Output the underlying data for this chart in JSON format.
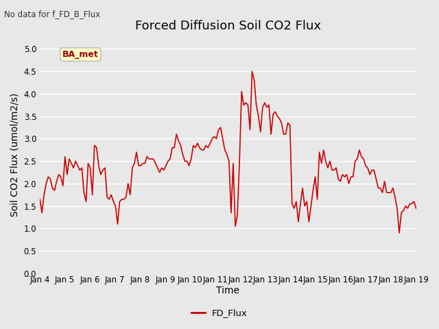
{
  "title": "Forced Diffusion Soil CO2 Flux",
  "top_left_text": "No data for f_FD_B_Flux",
  "xlabel": "Time",
  "ylabel": "Soil CO2 Flux (umol/m2/s)",
  "ylim": [
    0.0,
    5.3
  ],
  "yticks": [
    0.0,
    0.5,
    1.0,
    1.5,
    2.0,
    2.5,
    3.0,
    3.5,
    4.0,
    4.5,
    5.0
  ],
  "xtick_labels": [
    "Jan 4",
    "Jan 5",
    "Jan 6",
    "Jan 7",
    "Jan 8",
    "Jan 9",
    "Jan 10",
    "Jan 11",
    "Jan 12",
    "Jan 13",
    "Jan 14",
    "Jan 15",
    "Jan 16",
    "Jan 17",
    "Jan 18",
    "Jan 19"
  ],
  "line_color": "#cc0000",
  "legend_label": "FD_Flux",
  "legend_line_color": "#cc0000",
  "ba_met_text": "BA_met",
  "ba_met_bg": "#ffffcc",
  "ba_met_border": "#aaaaaa",
  "ba_met_text_color": "#990000",
  "bg_color": "#e8e8e8",
  "plot_bg_color": "#e8e8e8",
  "grid_color": "white",
  "title_fontsize": 13,
  "axis_label_fontsize": 10,
  "tick_fontsize": 8.5,
  "line_width": 1.2,
  "y_values": [
    1.65,
    1.35,
    1.75,
    2.0,
    2.15,
    2.1,
    1.9,
    1.85,
    2.05,
    2.2,
    2.15,
    1.95,
    2.6,
    2.2,
    2.55,
    2.45,
    2.35,
    2.5,
    2.4,
    2.3,
    2.35,
    1.8,
    1.6,
    2.45,
    2.35,
    1.75,
    2.85,
    2.8,
    2.4,
    2.2,
    2.3,
    2.35,
    1.7,
    1.65,
    1.75,
    1.6,
    1.5,
    1.1,
    1.6,
    1.65,
    1.65,
    1.7,
    2.0,
    1.75,
    2.35,
    2.45,
    2.7,
    2.4,
    2.4,
    2.45,
    2.45,
    2.6,
    2.55,
    2.55,
    2.55,
    2.45,
    2.35,
    2.25,
    2.35,
    2.3,
    2.4,
    2.5,
    2.55,
    2.8,
    2.8,
    3.1,
    2.95,
    2.85,
    2.65,
    2.5,
    2.5,
    2.4,
    2.55,
    2.85,
    2.8,
    2.9,
    2.8,
    2.75,
    2.75,
    2.85,
    2.8,
    2.9,
    3.0,
    3.05,
    3.0,
    3.2,
    3.25,
    3.0,
    2.75,
    2.65,
    2.5,
    1.35,
    2.45,
    1.05,
    1.3,
    2.5,
    4.05,
    3.75,
    3.8,
    3.75,
    3.2,
    4.5,
    4.3,
    3.75,
    3.5,
    3.15,
    3.7,
    3.8,
    3.7,
    3.75,
    3.1,
    3.55,
    3.6,
    3.5,
    3.45,
    3.35,
    3.1,
    3.1,
    3.35,
    3.3,
    1.55,
    1.45,
    1.6,
    1.15,
    1.55,
    1.9,
    1.5,
    1.6,
    1.15,
    1.5,
    1.85,
    2.15,
    1.65,
    2.7,
    2.45,
    2.75,
    2.5,
    2.35,
    2.5,
    2.3,
    2.3,
    2.35,
    2.1,
    2.05,
    2.2,
    2.15,
    2.2,
    2.0,
    2.15,
    2.15,
    2.5,
    2.55,
    2.75,
    2.6,
    2.55,
    2.4,
    2.35,
    2.2,
    2.3,
    2.3,
    2.1,
    1.9,
    1.9,
    1.8,
    2.05,
    1.8,
    1.8,
    1.8,
    1.9,
    1.7,
    1.45,
    0.9,
    1.35,
    1.4,
    1.5,
    1.45,
    1.55,
    1.55,
    1.6,
    1.45
  ]
}
